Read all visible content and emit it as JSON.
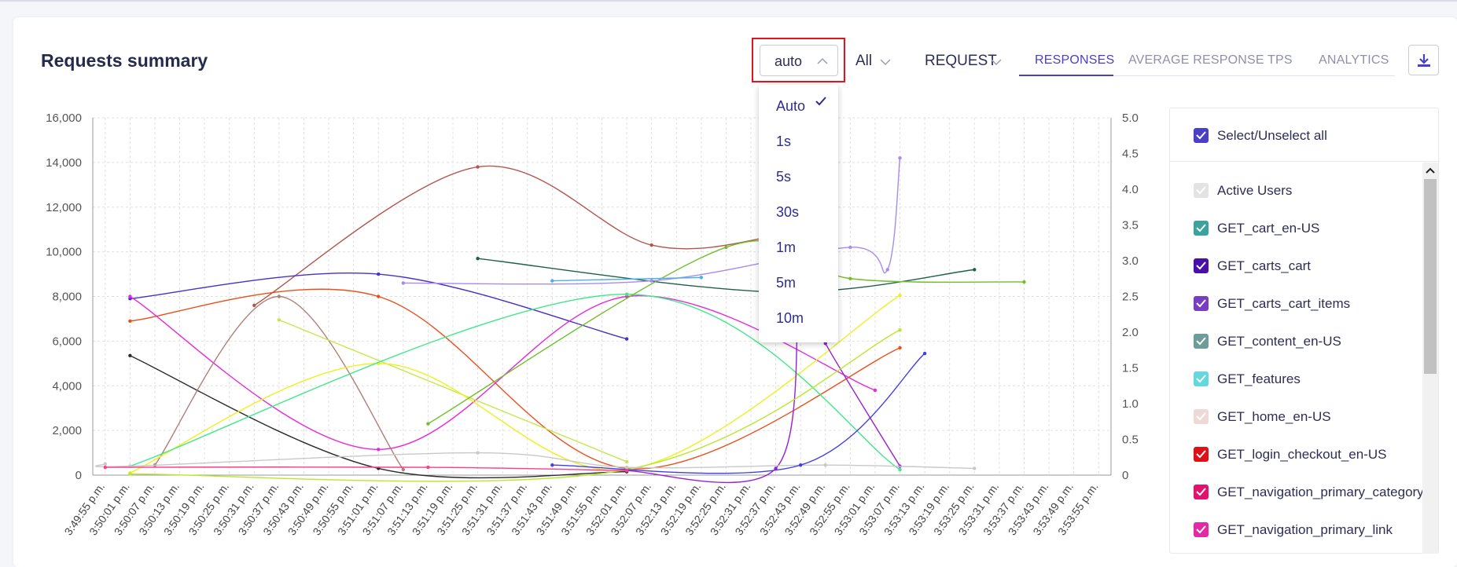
{
  "header": {
    "title": "Requests summary"
  },
  "interval": {
    "value": "auto",
    "options": [
      "Auto",
      "1s",
      "5s",
      "30s",
      "1m",
      "5m",
      "10m"
    ],
    "selected_option": "Auto"
  },
  "filters": {
    "scope": "All",
    "metric": "REQUEST"
  },
  "tabs": [
    "RESPONSES",
    "AVERAGE RESPONSE",
    "TPS",
    "ANALYTICS"
  ],
  "active_tab": "RESPONSES",
  "icons": {
    "download": "download-icon"
  },
  "legend": {
    "select_all": "Select/Unselect all",
    "items": [
      {
        "name": "Active Users",
        "color": "#e3e3e3",
        "checked": true
      },
      {
        "name": "GET_cart_en-US",
        "color": "#3aa39f",
        "checked": true
      },
      {
        "name": "GET_carts_cart",
        "color": "#4a0fa8",
        "checked": true
      },
      {
        "name": "GET_carts_cart_items",
        "color": "#7a3cc2",
        "checked": true
      },
      {
        "name": "GET_content_en-US",
        "color": "#6e9c9a",
        "checked": true
      },
      {
        "name": "GET_features",
        "color": "#64d8df",
        "checked": true
      },
      {
        "name": "GET_home_en-US",
        "color": "#eed9d6",
        "checked": true
      },
      {
        "name": "GET_login_checkout_en-US",
        "color": "#e0101a",
        "checked": true
      },
      {
        "name": "GET_navigation_primary_category",
        "color": "#e3126e",
        "checked": true
      },
      {
        "name": "GET_navigation_primary_link",
        "color": "#e32aa4",
        "checked": true
      }
    ]
  },
  "chart_data": {
    "type": "line",
    "x_labels": [
      "3:49:55 p.m.",
      "3:50:01 p.m.",
      "3:50:07 p.m.",
      "3:50:13 p.m.",
      "3:50:19 p.m.",
      "3:50:25 p.m.",
      "3:50:31 p.m.",
      "3:50:37 p.m.",
      "3:50:43 p.m.",
      "3:50:49 p.m.",
      "3:50:55 p.m.",
      "3:51:01 p.m.",
      "3:51:07 p.m.",
      "3:51:13 p.m.",
      "3:51:19 p.m.",
      "3:51:25 p.m.",
      "3:51:31 p.m.",
      "3:51:37 p.m.",
      "3:51:43 p.m.",
      "3:51:49 p.m.",
      "3:51:55 p.m.",
      "3:52:01 p.m.",
      "3:52:07 p.m.",
      "3:52:13 p.m.",
      "3:52:19 p.m.",
      "3:52:25 p.m.",
      "3:52:31 p.m.",
      "3:52:37 p.m.",
      "3:52:43 p.m.",
      "3:52:49 p.m.",
      "3:52:55 p.m.",
      "3:53:01 p.m.",
      "3:53:07 p.m.",
      "3:53:13 p.m.",
      "3:53:19 p.m.",
      "3:53:25 p.m.",
      "3:53:31 p.m.",
      "3:53:37 p.m.",
      "3:53:43 p.m.",
      "3:53:49 p.m.",
      "3:53:55 p.m."
    ],
    "y_left": {
      "min": 0,
      "max": 16000,
      "ticks": [
        "0",
        "2,000",
        "4,000",
        "6,000",
        "8,000",
        "10,000",
        "12,000",
        "14,000",
        "16,000"
      ]
    },
    "y_right": {
      "min": 0,
      "max": 5.0,
      "ticks": [
        "0",
        "0.5",
        "1.0",
        "1.5",
        "2.0",
        "2.5",
        "3.0",
        "3.5",
        "4.0",
        "4.5",
        "5.0"
      ]
    },
    "grid": true,
    "series": [
      {
        "color": "#b5554a",
        "x": [
          6,
          15,
          22,
          27
        ],
        "y": [
          7600,
          13800,
          10300,
          10700
        ]
      },
      {
        "color": "#4a2fc9",
        "x": [
          1,
          11,
          21
        ],
        "y": [
          7900,
          9000,
          6100
        ]
      },
      {
        "color": "#e8501a",
        "x": [
          1,
          11,
          21,
          32
        ],
        "y": [
          6900,
          8000,
          300,
          5700
        ]
      },
      {
        "color": "#1f5f4a",
        "x": [
          15,
          27,
          35
        ],
        "y": [
          9700,
          8200,
          9200
        ]
      },
      {
        "color": "#e62ad8",
        "x": [
          1,
          11,
          21,
          31
        ],
        "y": [
          8000,
          1150,
          8000,
          3800
        ]
      },
      {
        "color": "#2b2b2b",
        "x": [
          1,
          11,
          21
        ],
        "y": [
          5350,
          300,
          150
        ]
      },
      {
        "color": "#b07f78",
        "x": [
          2,
          7,
          12
        ],
        "y": [
          450,
          8000,
          250
        ]
      },
      {
        "color": "#c4e84a",
        "x": [
          7,
          21
        ],
        "y": [
          6950,
          600
        ]
      },
      {
        "color": "#eef01a",
        "x": [
          1,
          11,
          21,
          32
        ],
        "y": [
          100,
          5000,
          250,
          8050
        ]
      },
      {
        "color": "#3fe88a",
        "x": [
          1,
          21,
          32
        ],
        "y": [
          400,
          8100,
          250
        ]
      },
      {
        "color": "#6fbf2a",
        "x": [
          13,
          25,
          30,
          37
        ],
        "y": [
          2300,
          10200,
          8800,
          8650
        ]
      },
      {
        "color": "#a78bf0",
        "x": [
          12,
          22,
          30,
          31.5,
          32
        ],
        "y": [
          8600,
          8700,
          10200,
          9200,
          14200
        ]
      },
      {
        "color": "#9a1fd0",
        "x": [
          21,
          27,
          28,
          29,
          32
        ],
        "y": [
          200,
          300,
          8400,
          5900,
          400
        ]
      },
      {
        "color": "#b8e82a",
        "x": [
          1,
          21,
          32
        ],
        "y": [
          50,
          250,
          6500
        ]
      },
      {
        "color": "#c8c8c8",
        "x": [
          0,
          1,
          15,
          21,
          29,
          35
        ],
        "y": [
          500,
          400,
          1000,
          350,
          450,
          300
        ]
      },
      {
        "color": "#4040e0",
        "x": [
          18,
          28,
          33
        ],
        "y": [
          450,
          450,
          5450
        ]
      },
      {
        "color": "#ff3b8a",
        "x": [
          0,
          13,
          21
        ],
        "y": [
          350,
          350,
          200
        ]
      },
      {
        "color": "#4ab0e8",
        "x": [
          18,
          24
        ],
        "y": [
          8700,
          8850
        ]
      }
    ]
  }
}
